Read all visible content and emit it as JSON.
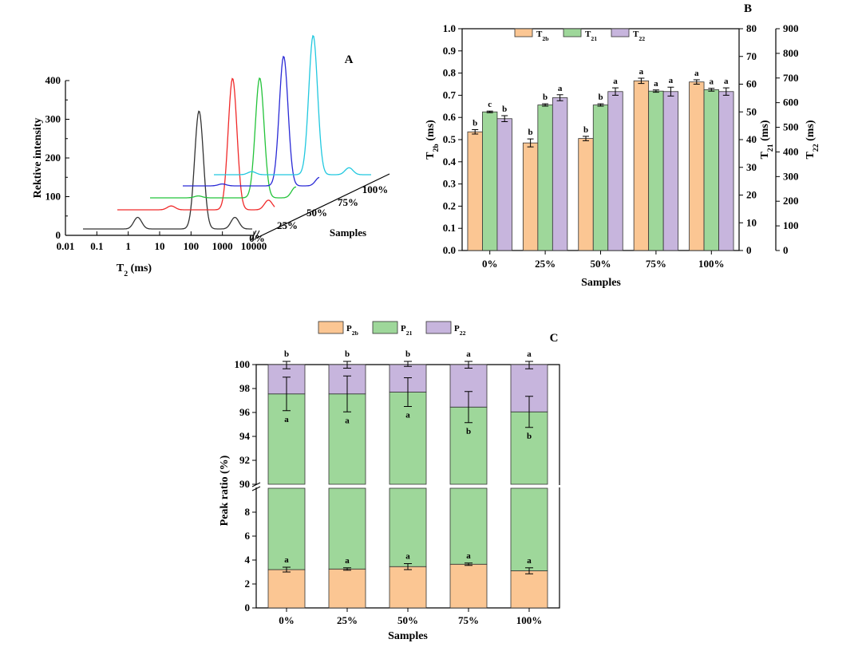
{
  "colors": {
    "orange": "#fbc693",
    "green": "#9ed79a",
    "purple": "#c7b5dd",
    "stroke": "#222222",
    "black": "#333333",
    "red": "#f02a2a",
    "lgreen": "#23c33a",
    "blue": "#2a2ad6",
    "cyan": "#21c8df"
  },
  "chart_data": [
    {
      "panel": "A",
      "type": "line",
      "title": "",
      "xlabel": "T",
      "xlabel_sub": "2",
      "xlabel_unit": " (ms)",
      "ylabel": "Rektive intensity",
      "xscale": "log",
      "xlim": [
        0.01,
        10000
      ],
      "ylim": [
        0,
        400
      ],
      "xticks": [
        "0.01",
        "0.1",
        "1",
        "10",
        "100",
        "1000",
        "10000"
      ],
      "yticks": [
        "0",
        "100",
        "200",
        "300",
        "400"
      ],
      "depth_axis_label": "Samples",
      "series": [
        {
          "name": "0%",
          "color_key": "black",
          "peaks": [
            {
              "x": 2,
              "y": 30
            },
            {
              "x": 180,
              "y": 305
            },
            {
              "x": 2500,
              "y": 30
            }
          ]
        },
        {
          "name": "25%",
          "color_key": "red",
          "peaks": [
            {
              "x": 2,
              "y": 10
            },
            {
              "x": 180,
              "y": 340
            },
            {
              "x": 2500,
              "y": 25
            }
          ]
        },
        {
          "name": "50%",
          "color_key": "lgreen",
          "peaks": [
            {
              "x": 2,
              "y": 5
            },
            {
              "x": 180,
              "y": 310
            },
            {
              "x": 2500,
              "y": 28
            }
          ]
        },
        {
          "name": "75%",
          "color_key": "blue",
          "peaks": [
            {
              "x": 2,
              "y": 5
            },
            {
              "x": 180,
              "y": 335
            },
            {
              "x": 2500,
              "y": 22
            }
          ]
        },
        {
          "name": "100%",
          "color_key": "cyan",
          "peaks": [
            {
              "x": 2,
              "y": 8
            },
            {
              "x": 180,
              "y": 360
            },
            {
              "x": 2500,
              "y": 18
            }
          ]
        }
      ]
    },
    {
      "panel": "B",
      "type": "bar",
      "xlabel": "Samples",
      "categories": [
        "0%",
        "25%",
        "50%",
        "75%",
        "100%"
      ],
      "left_axis": {
        "label": "T",
        "label_sub": "2b",
        "label_unit": " (ms)",
        "ylim": [
          0,
          1.0
        ],
        "ticks": [
          "0.0",
          "0.1",
          "0.2",
          "0.3",
          "0.4",
          "0.5",
          "0.6",
          "0.7",
          "0.8",
          "0.9",
          "1.0"
        ]
      },
      "right_axis_1": {
        "label": "T",
        "label_sub": "21",
        "label_unit": " (ms)",
        "ylim": [
          0,
          80
        ],
        "ticks": [
          "0",
          "10",
          "20",
          "30",
          "40",
          "50",
          "60",
          "70",
          "80"
        ]
      },
      "right_axis_2": {
        "label": "T",
        "label_sub": "22",
        "label_unit": " (ms)",
        "ylim": [
          0,
          900
        ],
        "ticks": [
          "0",
          "100",
          "200",
          "300",
          "400",
          "500",
          "600",
          "700",
          "800",
          "900"
        ]
      },
      "series": [
        {
          "name": "T",
          "name_sub": "2b",
          "axis": "left",
          "color_key": "orange",
          "values": [
            0.535,
            0.485,
            0.505,
            0.765,
            0.76
          ],
          "errors": [
            0.01,
            0.018,
            0.01,
            0.012,
            0.01
          ],
          "letters": [
            "b",
            "b",
            "b",
            "a",
            "a"
          ]
        },
        {
          "name": "T",
          "name_sub": "21",
          "axis": "right1",
          "color_key": "green",
          "values": [
            50,
            52.5,
            52.5,
            57.5,
            58
          ],
          "errors": [
            0.3,
            0.4,
            0.4,
            0.4,
            0.5
          ],
          "letters": [
            "c",
            "b",
            "b",
            "a",
            "a"
          ]
        },
        {
          "name": "T",
          "name_sub": "22",
          "axis": "right2",
          "color_key": "purple",
          "values": [
            535,
            620,
            645,
            645,
            645
          ],
          "errors": [
            12,
            12,
            15,
            18,
            15
          ],
          "letters": [
            "b",
            "a",
            "a",
            "a",
            "a"
          ]
        }
      ]
    },
    {
      "panel": "C",
      "type": "bar",
      "stacked": true,
      "broken_axis": true,
      "xlabel": "Samples",
      "ylabel": "Peak ratio (%)",
      "categories": [
        "0%",
        "25%",
        "50%",
        "75%",
        "100%"
      ],
      "lower_ylim": [
        0,
        10
      ],
      "upper_ylim": [
        90,
        100
      ],
      "lower_ticks": [
        "0",
        "2",
        "4",
        "6",
        "8"
      ],
      "upper_ticks": [
        "90",
        "92",
        "94",
        "96",
        "98",
        "100"
      ],
      "series": [
        {
          "name": "P",
          "name_sub": "2b",
          "color_key": "orange",
          "values": [
            3.2,
            3.25,
            3.45,
            3.65,
            3.1
          ],
          "errors": [
            0.2,
            0.1,
            0.25,
            0.1,
            0.25
          ],
          "letters": [
            "a",
            "a",
            "a",
            "a",
            "a"
          ]
        },
        {
          "name": "P",
          "name_sub": "21",
          "color_key": "green",
          "values": [
            94.35,
            94.3,
            94.25,
            92.8,
            92.95
          ],
          "errors": [
            1.4,
            1.5,
            1.2,
            1.3,
            1.3
          ],
          "letters": [
            "a",
            "a",
            "a",
            "b",
            "b"
          ]
        },
        {
          "name": "P",
          "name_sub": "22",
          "color_key": "purple",
          "values": [
            2.45,
            2.45,
            2.3,
            3.55,
            3.95
          ],
          "errors": [
            0.35,
            0.3,
            0.15,
            0.3,
            0.35
          ],
          "letters": [
            "b",
            "b",
            "b",
            "a",
            "a"
          ]
        }
      ],
      "cumulative_tops": [
        97.55,
        97.55,
        97.7,
        96.45,
        96.05
      ]
    }
  ]
}
